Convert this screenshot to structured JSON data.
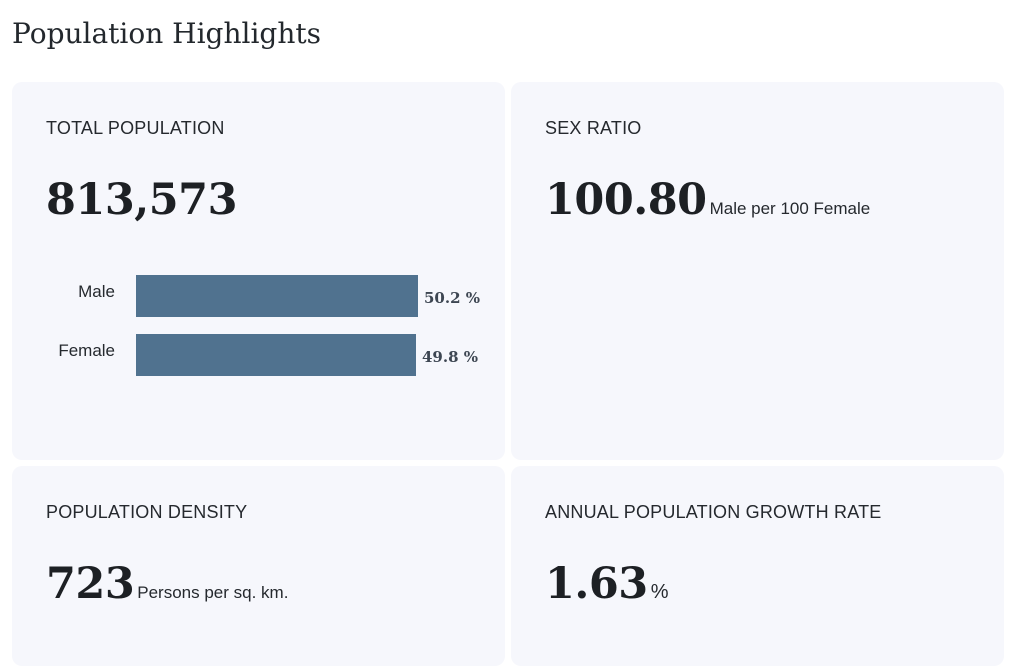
{
  "page": {
    "title": "Population Highlights"
  },
  "total_population": {
    "label": "TOTAL POPULATION",
    "value": "813,573",
    "breakdown": [
      {
        "label": "Male",
        "percent": 50.2,
        "display": "50.2 %"
      },
      {
        "label": "Female",
        "percent": 49.8,
        "display": "49.8 %"
      }
    ],
    "bar_color": "#50728f"
  },
  "sex_ratio": {
    "label": "SEX RATIO",
    "value": "100.80",
    "unit": "Male per 100 Female"
  },
  "population_density": {
    "label": "POPULATION DENSITY",
    "value": "723",
    "unit": "Persons per sq. km."
  },
  "growth_rate": {
    "label": "ANNUAL POPULATION GROWTH RATE",
    "value": "1.63",
    "unit": "%"
  },
  "colors": {
    "card_background": "#f6f7fc",
    "bar": "#50728f"
  }
}
